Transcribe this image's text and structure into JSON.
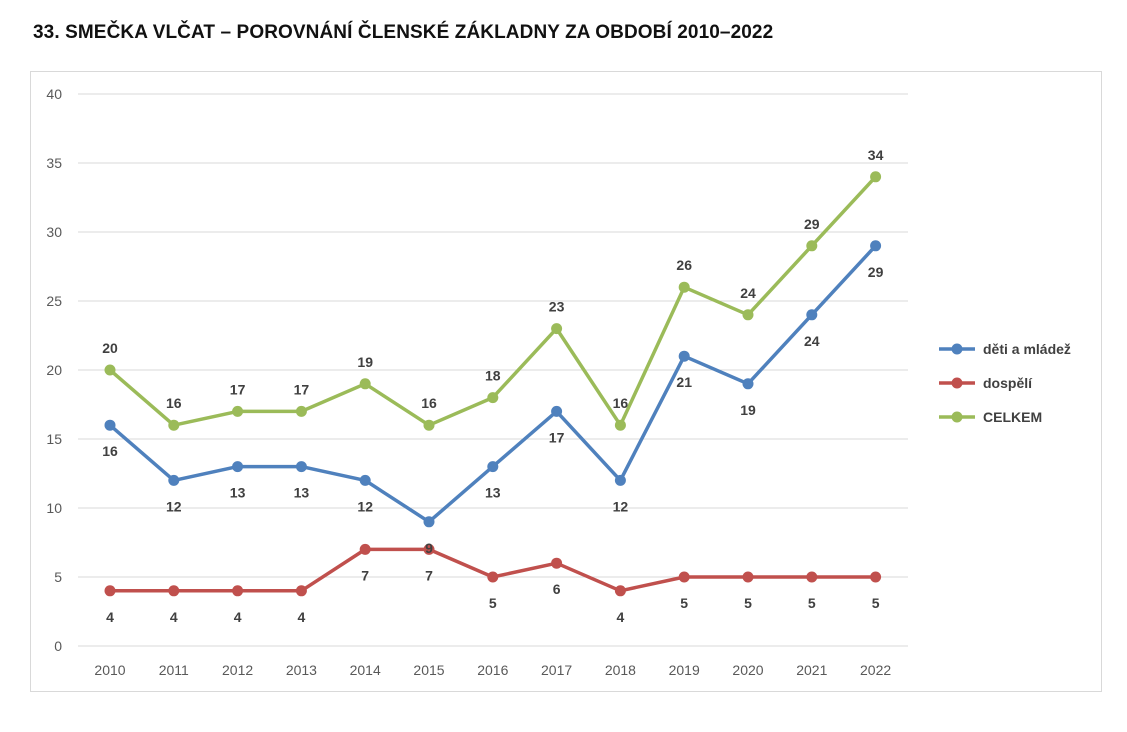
{
  "title": "33. SMEČKA VLČAT – POROVNÁNÍ ČLENSKÉ ZÁKLADNY ZA OBDOBÍ 2010–2022",
  "chart_data": {
    "type": "line",
    "title": "33. SMEČKA VLČAT – POROVNÁNÍ ČLENSKÉ ZÁKLADNY ZA OBDOBÍ 2010–2022",
    "xlabel": "",
    "ylabel": "",
    "x": [
      "2010",
      "2011",
      "2012",
      "2013",
      "2014",
      "2015",
      "2016",
      "2017",
      "2018",
      "2019",
      "2020",
      "2021",
      "2022"
    ],
    "ylim": [
      0,
      40
    ],
    "yticks": [
      "0",
      "5",
      "10",
      "15",
      "20",
      "25",
      "30",
      "35",
      "40"
    ],
    "grid": true,
    "legend_position": "right",
    "series": [
      {
        "name": "děti a mládež",
        "color": "#4f81bd",
        "values": [
          16,
          12,
          13,
          13,
          12,
          9,
          13,
          17,
          12,
          21,
          19,
          24,
          29
        ],
        "label_pos": "below"
      },
      {
        "name": "dospělí",
        "color": "#c0504d",
        "values": [
          4,
          4,
          4,
          4,
          7,
          7,
          5,
          6,
          4,
          5,
          5,
          5,
          5
        ],
        "label_pos": "below"
      },
      {
        "name": "CELKEM",
        "color": "#9bbb59",
        "values": [
          20,
          16,
          17,
          17,
          19,
          16,
          18,
          23,
          16,
          26,
          24,
          29,
          34
        ],
        "label_pos": "above"
      }
    ]
  }
}
